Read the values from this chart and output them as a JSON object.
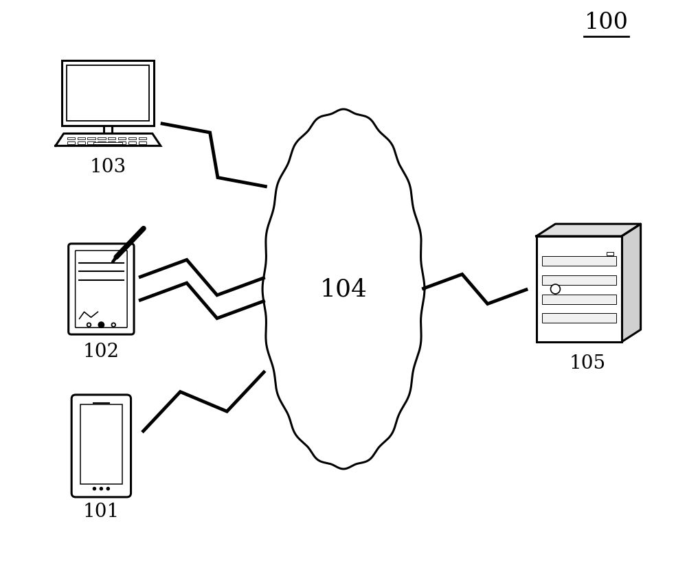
{
  "title_label": "100",
  "cloud_label": "104",
  "device_labels": [
    "101",
    "102",
    "103",
    "105"
  ],
  "bg_color": "#ffffff",
  "line_color": "#000000",
  "label_fontsize": 20,
  "cloud_label_fontsize": 26
}
